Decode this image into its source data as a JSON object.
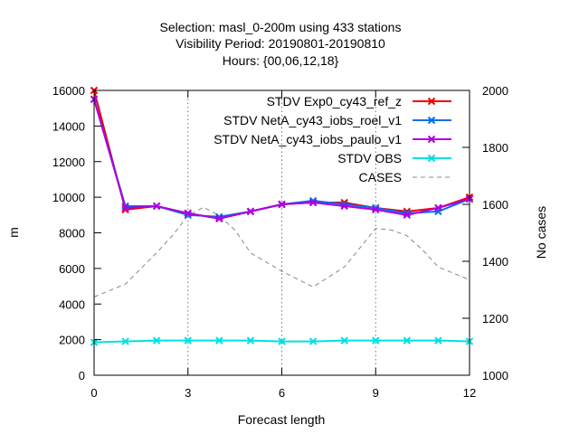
{
  "chart_data": {
    "type": "line",
    "title_lines": [
      "Selection: masl_0-200m using   433 stations",
      "Visibility   Period: 20190801-20190810",
      "Hours: {00,06,12,18}"
    ],
    "xlabel": "Forecast length",
    "ylabel": "m",
    "y2label": "No cases",
    "x": [
      0,
      1,
      2,
      3,
      4,
      5,
      6,
      7,
      8,
      9,
      10,
      11,
      12
    ],
    "xlim": [
      0,
      12
    ],
    "xticks": [
      "0",
      "3",
      "6",
      "9",
      "12"
    ],
    "xtick_values": [
      0,
      3,
      6,
      9,
      12
    ],
    "ylim": [
      0,
      16000
    ],
    "yticks": [
      "0",
      "2000",
      "4000",
      "6000",
      "8000",
      "10000",
      "12000",
      "14000",
      "16000"
    ],
    "ytick_values": [
      0,
      2000,
      4000,
      6000,
      8000,
      10000,
      12000,
      14000,
      16000
    ],
    "y2lim": [
      1000,
      2000
    ],
    "y2ticks": [
      "1000",
      "1200",
      "1400",
      "1600",
      "1800",
      "2000"
    ],
    "y2tick_values": [
      1000,
      1200,
      1400,
      1600,
      1800,
      2000
    ],
    "grid": true,
    "legend_position": "top-right",
    "series": [
      {
        "name": "STDV Exp0_cy43_ref_z",
        "color": "#ee0000",
        "marker": "x",
        "values": [
          16000,
          9300,
          9500,
          9100,
          8800,
          9200,
          9600,
          9700,
          9700,
          9400,
          9200,
          9400,
          10000
        ]
      },
      {
        "name": "STDV NetA_cy43_iobs_roel_v1",
        "color": "#0070ee",
        "marker": "x",
        "values": [
          15500,
          9500,
          9500,
          9000,
          8900,
          9200,
          9600,
          9800,
          9600,
          9400,
          9100,
          9200,
          9900
        ]
      },
      {
        "name": "STDV NetA_cy43_iobs_paulo_v1",
        "color": "#b000e0",
        "marker": "x",
        "values": [
          15500,
          9400,
          9500,
          9100,
          8800,
          9200,
          9600,
          9700,
          9500,
          9300,
          9000,
          9400,
          9900
        ]
      },
      {
        "name": "STDV OBS",
        "color": "#00e0e0",
        "marker": "x",
        "values": [
          1850,
          1900,
          1950,
          1950,
          1950,
          1950,
          1900,
          1900,
          1950,
          1950,
          1950,
          1950,
          1900
        ]
      }
    ],
    "cases": {
      "name": "CASES",
      "color": "#888888",
      "axis": "y2",
      "x": [
        0,
        1,
        2,
        2.5,
        3,
        3.5,
        4,
        4.5,
        5,
        6,
        7,
        8,
        9,
        9.5,
        10,
        10.5,
        11,
        12
      ],
      "values": [
        1275,
        1320,
        1430,
        1490,
        1560,
        1590,
        1560,
        1510,
        1430,
        1365,
        1310,
        1380,
        1515,
        1510,
        1490,
        1440,
        1380,
        1335
      ]
    }
  }
}
